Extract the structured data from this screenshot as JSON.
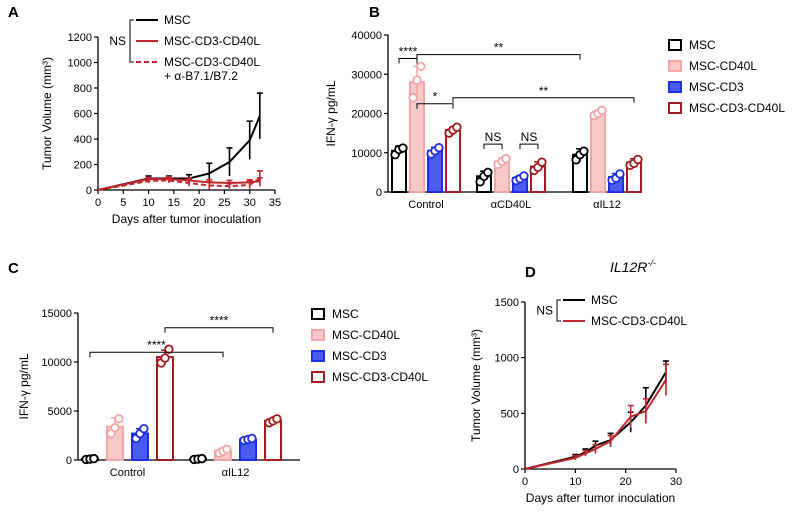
{
  "panels": {
    "A": {
      "letter": "A"
    },
    "B": {
      "letter": "B"
    },
    "C": {
      "letter": "C"
    },
    "D": {
      "letter": "D",
      "subtitle": "IL12R",
      "subtitle_sup": "-/-"
    }
  },
  "chart_data": [
    {
      "id": "A",
      "type": "line",
      "xlabel": "Days after tumor inoculation",
      "ylabel": "Tumor Volume (mm³)",
      "xlim": [
        0,
        35
      ],
      "ylim": [
        0,
        1200
      ],
      "xticks": [
        "0",
        "5",
        "10",
        "15",
        "20",
        "25",
        "30",
        "35"
      ],
      "yticks": [
        "0",
        "200",
        "400",
        "600",
        "800",
        "1000",
        "1200"
      ],
      "legend_ns": "NS",
      "series": [
        {
          "name": "MSC",
          "color": "#000000",
          "dash": false,
          "x": [
            0,
            10,
            14,
            18,
            22,
            26,
            30,
            32
          ],
          "y": [
            0,
            90,
            90,
            90,
            130,
            220,
            390,
            580
          ],
          "err": [
            0,
            20,
            20,
            30,
            80,
            110,
            150,
            180
          ]
        },
        {
          "name": "MSC-CD3-CD40L",
          "color": "#c0282d",
          "dash": false,
          "x": [
            0,
            10,
            14,
            18,
            22,
            26,
            30,
            32
          ],
          "y": [
            0,
            85,
            85,
            75,
            60,
            55,
            60,
            70
          ],
          "err": [
            0,
            15,
            20,
            20,
            20,
            20,
            20,
            25
          ]
        },
        {
          "name": "MSC-CD3-CD40L",
          "name_line2": "+ α-B7.1/B7.2",
          "color": "#c0282d",
          "dash": true,
          "x": [
            0,
            10,
            14,
            18,
            22,
            26,
            30,
            32
          ],
          "y": [
            0,
            70,
            75,
            55,
            35,
            30,
            40,
            90
          ],
          "err": [
            0,
            15,
            20,
            25,
            30,
            20,
            30,
            60
          ]
        }
      ]
    },
    {
      "id": "B",
      "type": "bar",
      "xlabel": "",
      "ylabel": "IFN-γ pg/mL",
      "ylim": [
        0,
        40000
      ],
      "yticks": [
        "0",
        "10000",
        "20000",
        "30000",
        "40000"
      ],
      "categories": [
        "Control",
        "αCD40L",
        "αIL12"
      ],
      "series": [
        {
          "name": "MSC",
          "edge": "#000000",
          "fill": "#ffffff",
          "values": [
            10500,
            4000,
            9500
          ],
          "err": [
            1200,
            1300,
            1500
          ],
          "points": [
            [
              9500,
              10800,
              11200
            ],
            [
              2600,
              4000,
              5000
            ],
            [
              8200,
              9500,
              10400
            ]
          ]
        },
        {
          "name": "MSC-CD40L",
          "edge": "#f4a6a6",
          "fill": "#f8c9c9",
          "values": [
            28000,
            7800,
            20000
          ],
          "err": [
            4000,
            800,
            700
          ],
          "points": [
            [
              24000,
              28500,
              32000
            ],
            [
              7000,
              7800,
              8500
            ],
            [
              19500,
              20000,
              20800
            ]
          ]
        },
        {
          "name": "MSC-CD3",
          "edge": "#1f2fe0",
          "fill": "#4a5cf0",
          "values": [
            10500,
            3500,
            3800
          ],
          "err": [
            900,
            700,
            900
          ],
          "points": [
            [
              9700,
              10500,
              11300
            ],
            [
              2900,
              3400,
              4100
            ],
            [
              3000,
              3500,
              4600
            ]
          ]
        },
        {
          "name": "MSC-CD3-CD40L",
          "edge": "#a11d21",
          "fill": "#ffffff",
          "values": [
            15800,
            6500,
            7500
          ],
          "err": [
            700,
            1200,
            1000
          ],
          "points": [
            [
              15000,
              15800,
              16500
            ],
            [
              5500,
              6300,
              7600
            ],
            [
              6800,
              7300,
              8300
            ]
          ]
        }
      ],
      "annotations": [
        "****",
        "**",
        "*",
        "**",
        "NS",
        "NS"
      ]
    },
    {
      "id": "C",
      "type": "bar",
      "xlabel": "",
      "ylabel": "IFN-γ pg/mL",
      "ylim": [
        0,
        15000
      ],
      "yticks": [
        "0",
        "5000",
        "10000",
        "15000"
      ],
      "categories": [
        "Control",
        "αIL12"
      ],
      "series": [
        {
          "name": "MSC",
          "edge": "#000000",
          "fill": "#ffffff",
          "values": [
            100,
            100
          ],
          "err": [
            30,
            30
          ],
          "points": [
            [
              60,
              100,
              140
            ],
            [
              60,
              100,
              140
            ]
          ]
        },
        {
          "name": "MSC-CD40L",
          "edge": "#f4a6a6",
          "fill": "#f8c9c9",
          "values": [
            3400,
            900
          ],
          "err": [
            900,
            300
          ],
          "points": [
            [
              2700,
              3300,
              4200
            ],
            [
              700,
              900,
              1100
            ]
          ]
        },
        {
          "name": "MSC-CD3",
          "edge": "#1f2fe0",
          "fill": "#4a5cf0",
          "values": [
            2700,
            2100
          ],
          "err": [
            500,
            150
          ],
          "points": [
            [
              2200,
              2700,
              3200
            ],
            [
              2000,
              2100,
              2200
            ]
          ]
        },
        {
          "name": "MSC-CD3-CD40L",
          "edge": "#a11d21",
          "fill": "#ffffff",
          "values": [
            10500,
            4000
          ],
          "err": [
            700,
            250
          ],
          "points": [
            [
              9900,
              10400,
              11300
            ],
            [
              3800,
              4000,
              4200
            ]
          ]
        }
      ],
      "annotations": [
        "****",
        "****"
      ]
    },
    {
      "id": "D",
      "type": "line",
      "xlabel": "Days after tumor inoculation",
      "ylabel": "Tumor Volume (mm³)",
      "xlim": [
        0,
        30
      ],
      "ylim": [
        0,
        1500
      ],
      "xticks": [
        "0",
        "10",
        "20",
        "30"
      ],
      "yticks": [
        "0",
        "500",
        "1000",
        "1500"
      ],
      "legend_ns": "NS",
      "series": [
        {
          "name": "MSC",
          "color": "#000000",
          "dash": false,
          "x": [
            0,
            10,
            12,
            14,
            17,
            21,
            24,
            28
          ],
          "y": [
            0,
            110,
            150,
            210,
            260,
            420,
            570,
            870
          ],
          "err": [
            0,
            20,
            30,
            40,
            60,
            90,
            160,
            100
          ]
        },
        {
          "name": "MSC-CD3-CD40L",
          "color": "#c0282d",
          "dash": false,
          "x": [
            0,
            10,
            12,
            14,
            17,
            21,
            24,
            28
          ],
          "y": [
            0,
            100,
            140,
            180,
            250,
            470,
            520,
            800
          ],
          "err": [
            0,
            20,
            25,
            40,
            50,
            100,
            110,
            140
          ]
        }
      ]
    }
  ]
}
